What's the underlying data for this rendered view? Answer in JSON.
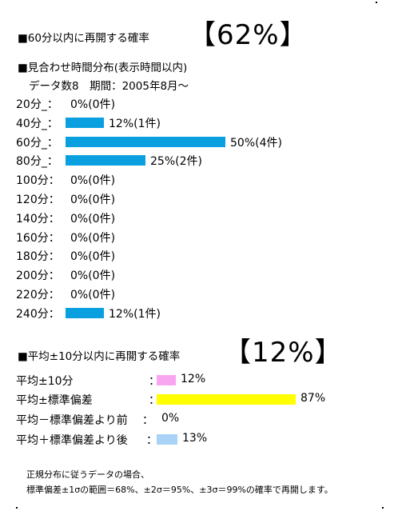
{
  "section1": {
    "title": "■60分以内に再開する確率",
    "big_percent": "【62%】"
  },
  "section2": {
    "title": "■見合わせ時間分布(表示時間以内)",
    "subtitle": "データ数8　期間：2005年8月～"
  },
  "section3": {
    "title": "■平均±10分以内に再開する確率",
    "big_percent": "【12%】"
  },
  "note": {
    "line1": "正規分布に従うデータの場合、",
    "line2": "標準偏差±1σの範囲＝68%、±2σ＝95%、±3σ＝99%の確率で再開します。"
  },
  "colors": {
    "distribution_bar": "#0aa0e0",
    "within_10": "#f8a6f0",
    "within_sd": "#ffff00",
    "before_sd": "#ffffff",
    "after_sd": "#a8d2f6"
  },
  "chart_data": [
    {
      "type": "bar",
      "orientation": "horizontal",
      "categories": [
        "20分_",
        "40分_",
        "60分_",
        "80分_",
        "100分",
        "120分",
        "140分",
        "160分",
        "180分",
        "200分",
        "220分",
        "240分"
      ],
      "values": [
        0,
        12,
        50,
        25,
        0,
        0,
        0,
        0,
        0,
        0,
        0,
        12
      ],
      "value_labels": [
        "0%(0件)",
        "12%(1件)",
        "50%(4件)",
        "25%(2件)",
        "0%(0件)",
        "0%(0件)",
        "0%(0件)",
        "0%(0件)",
        "0%(0件)",
        "0%(0件)",
        "0%(0件)",
        "12%(1件)"
      ],
      "counts": [
        0,
        1,
        4,
        2,
        0,
        0,
        0,
        0,
        0,
        0,
        0,
        1
      ],
      "unit": "%",
      "xlim": [
        0,
        50
      ]
    },
    {
      "type": "bar",
      "orientation": "horizontal",
      "categories": [
        "平均±10分",
        "平均±標準偏差",
        "平均－標準偏差より前",
        "平均＋標準偏差より後"
      ],
      "values": [
        12,
        87,
        0,
        13
      ],
      "value_labels": [
        "12%",
        "87%",
        "0%",
        "13%"
      ],
      "separators": [
        "：",
        "：",
        "：",
        "："
      ],
      "unit": "%",
      "xlim": [
        0,
        87
      ]
    }
  ]
}
